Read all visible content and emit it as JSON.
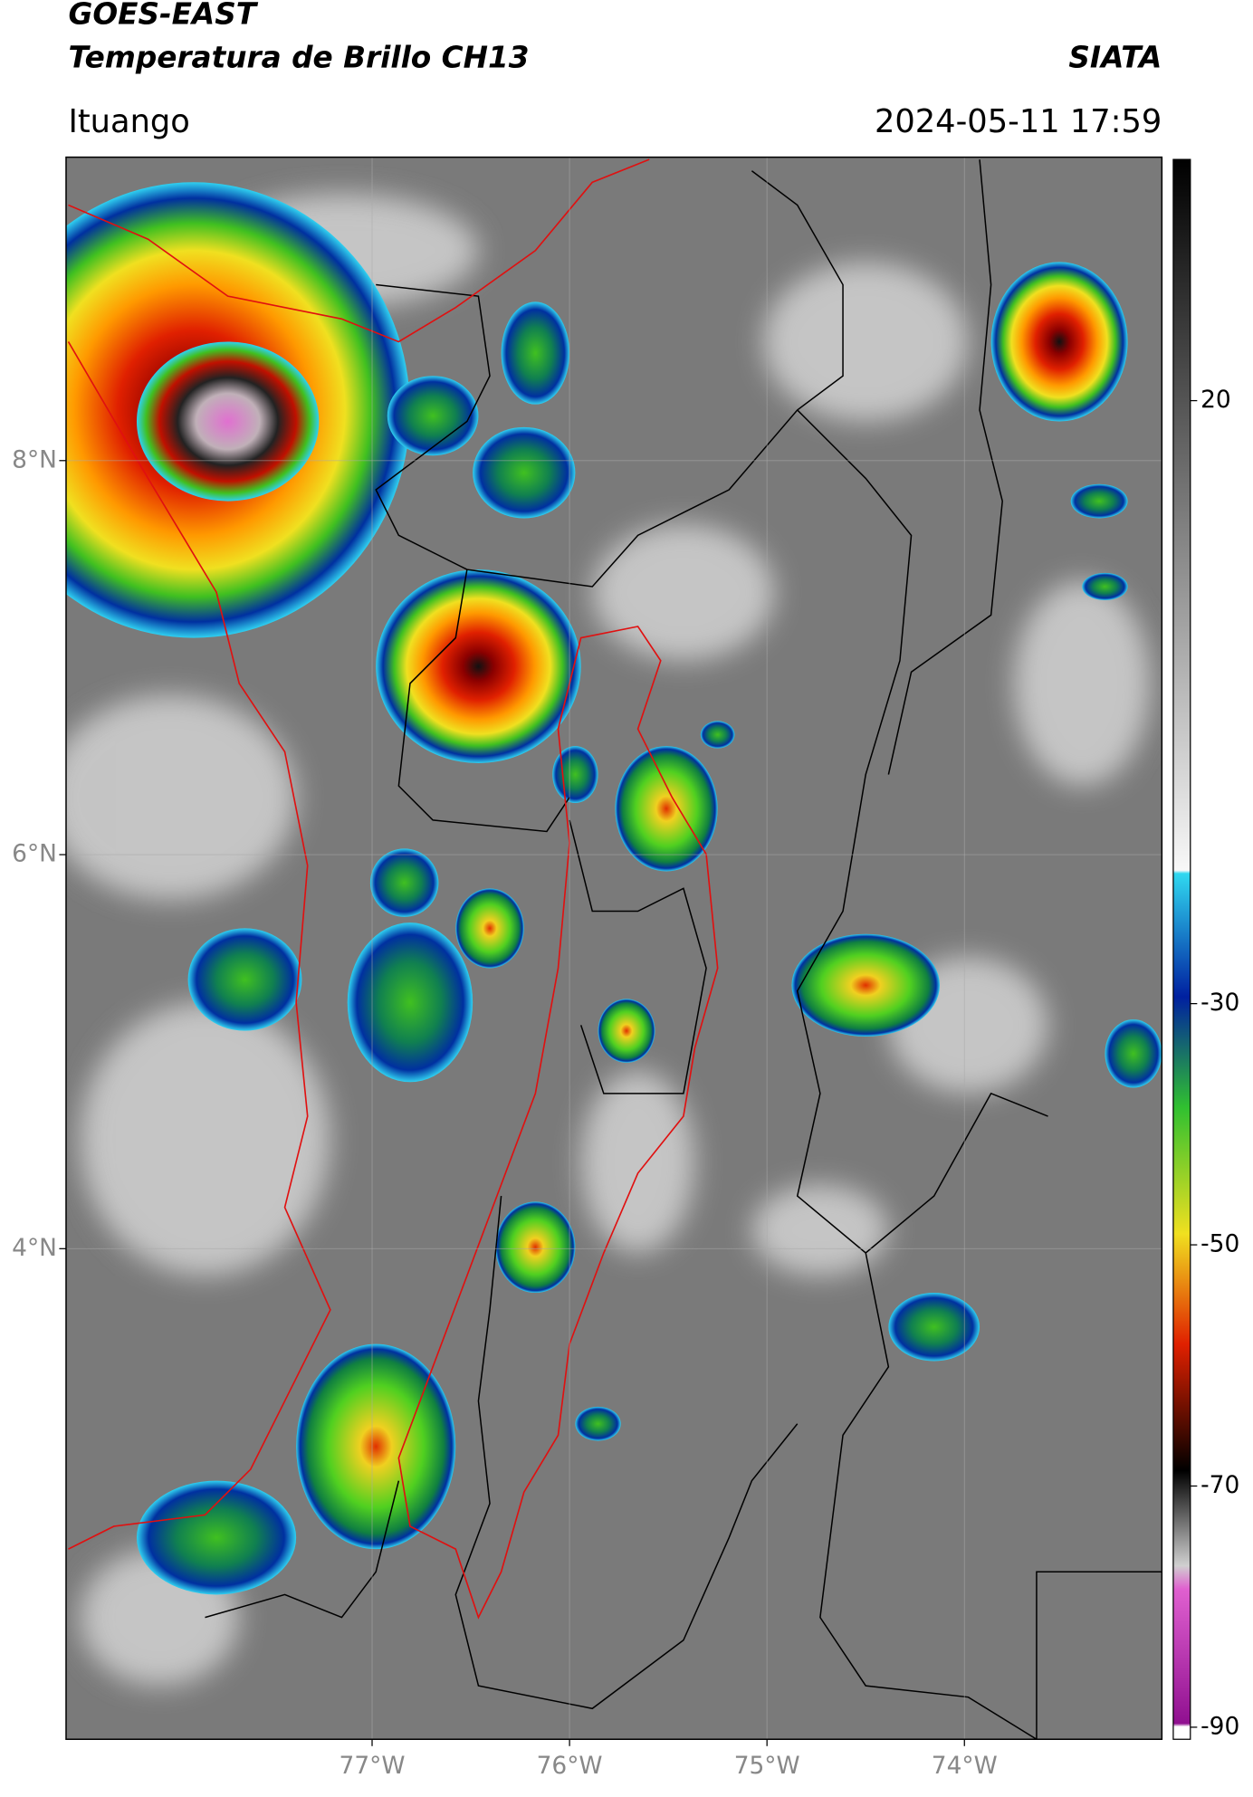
{
  "header": {
    "title": "GOES-EAST",
    "subtitle": "Temperatura de Brillo CH13",
    "organization": "SIATA",
    "location": "Ituango",
    "timestamp": "2024-05-11 17:59"
  },
  "map": {
    "lat_range": [
      1.51,
      9.54
    ],
    "lon_range": [
      -78.55,
      -73.0
    ],
    "lat_ticks": [
      {
        "value": 8,
        "label": "8°N"
      },
      {
        "value": 6,
        "label": "6°N"
      },
      {
        "value": 4,
        "label": "4°N"
      }
    ],
    "lon_ticks": [
      {
        "value": -77,
        "label": "77°W"
      },
      {
        "value": -76,
        "label": "76°W"
      },
      {
        "value": -75,
        "label": "75°W"
      },
      {
        "value": -74,
        "label": "74°W"
      }
    ]
  },
  "colorbar": {
    "range": [
      -91,
      40
    ],
    "ticks": [
      20,
      -30,
      -50,
      -70,
      -90
    ]
  }
}
